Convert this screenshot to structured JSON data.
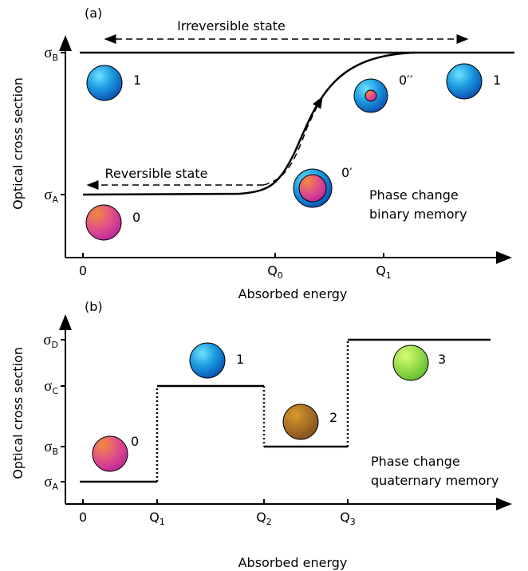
{
  "panels": [
    {
      "label": "(a)",
      "y_axis_title": "Optical cross section",
      "x_axis_title": "Absorbed energy",
      "y_ticks": [
        {
          "symbol": "σ",
          "sub": "B"
        },
        {
          "symbol": "σ",
          "sub": "A"
        }
      ],
      "x_ticks": [
        {
          "symbol": "0"
        },
        {
          "symbol": "Q",
          "sub": "0"
        },
        {
          "symbol": "Q",
          "sub": "1"
        }
      ],
      "annotations": [
        "Irreversible state",
        "Reversible state"
      ],
      "states": [
        "1",
        "0",
        "0′",
        "0′′",
        "1"
      ],
      "caption": [
        "Phase change",
        "binary memory"
      ]
    },
    {
      "label": "(b)",
      "y_axis_title": "Optical cross section",
      "x_axis_title": "Absorbed energy",
      "y_ticks": [
        {
          "symbol": "σ",
          "sub": "D"
        },
        {
          "symbol": "σ",
          "sub": "C"
        },
        {
          "symbol": "σ",
          "sub": "B"
        },
        {
          "symbol": "σ",
          "sub": "A"
        }
      ],
      "x_ticks": [
        {
          "symbol": "0"
        },
        {
          "symbol": "Q",
          "sub": "1"
        },
        {
          "symbol": "Q",
          "sub": "2"
        },
        {
          "symbol": "Q",
          "sub": "3"
        }
      ],
      "states": [
        "0",
        "1",
        "2",
        "3"
      ],
      "caption": [
        "Phase change",
        "quaternary memory"
      ]
    }
  ]
}
